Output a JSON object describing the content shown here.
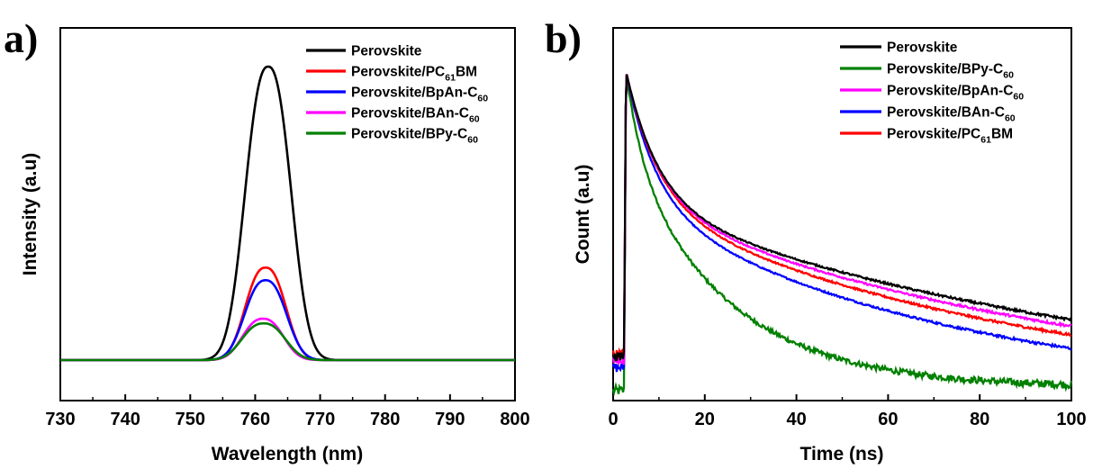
{
  "chart_data": [
    {
      "panel": "a)",
      "type": "line",
      "xlabel": "Wavelength (nm)",
      "ylabel": "Intensity (a.u)",
      "xlim": [
        730,
        800
      ],
      "xticks": [
        730,
        740,
        750,
        760,
        770,
        780,
        790,
        800
      ],
      "ylim": [
        -0.12,
        1.0
      ],
      "legend_position": "top-right",
      "series": [
        {
          "name": "Perovskite",
          "color": "#000000",
          "peak_x": 762.0,
          "peak_y": 1.0,
          "sigma": 3.4,
          "baseline": 0.0
        },
        {
          "name": "Perovskite/PC61BM",
          "color": "#ff0000",
          "peak_x": 761.6,
          "peak_y": 0.315,
          "sigma": 3.0,
          "baseline": 0.0
        },
        {
          "name": "Perovskite/BpAn-C60",
          "color": "#0000ff",
          "peak_x": 761.6,
          "peak_y": 0.272,
          "sigma": 3.1,
          "baseline": 0.0
        },
        {
          "name": "Perovskite/BAn-C60",
          "color": "#ff00ff",
          "peak_x": 761.2,
          "peak_y": 0.141,
          "sigma": 3.0,
          "baseline": 0.0
        },
        {
          "name": "Perovskite/BPy-C60",
          "color": "#008000",
          "peak_x": 761.3,
          "peak_y": 0.125,
          "sigma": 3.2,
          "baseline": 0.0
        }
      ]
    },
    {
      "panel": "b)",
      "type": "line",
      "xlabel": "Time (ns)",
      "ylabel": "Count (a.u)",
      "xlim": [
        0,
        100
      ],
      "xticks": [
        0,
        20,
        40,
        60,
        80,
        100
      ],
      "ylim": [
        0,
        1.05
      ],
      "legend_position": "top-right",
      "series": [
        {
          "name": "Perovskite",
          "color": "#000000",
          "rise_x": 2.8,
          "start_y": 1.0,
          "pre_level": 0.135,
          "a1": 0.4,
          "t1": 7,
          "a2": 0.6,
          "t2": 105,
          "floor": 0.01
        },
        {
          "name": "Perovskite/BPy-C60",
          "color": "#008000",
          "rise_x": 2.8,
          "start_y": 1.0,
          "pre_level": 0.03,
          "a1": 0.25,
          "t1": 3.5,
          "a2": 0.75,
          "t2": 22,
          "floor": 0.04
        },
        {
          "name": "Perovskite/BpAn-C60",
          "color": "#ff00ff",
          "rise_x": 2.8,
          "start_y": 1.0,
          "pre_level": 0.12,
          "a1": 0.4,
          "t1": 7,
          "a2": 0.6,
          "t2": 96,
          "floor": 0.01
        },
        {
          "name": "Perovskite/BAn-C60",
          "color": "#0000ff",
          "rise_x": 2.8,
          "start_y": 1.0,
          "pre_level": 0.1,
          "a1": 0.4,
          "t1": 6.5,
          "a2": 0.6,
          "t2": 70,
          "floor": 0.01
        },
        {
          "name": "Perovskite/PC61BM",
          "color": "#ff0000",
          "rise_x": 2.8,
          "start_y": 1.0,
          "pre_level": 0.14,
          "a1": 0.4,
          "t1": 7,
          "a2": 0.6,
          "t2": 85,
          "floor": 0.01
        }
      ]
    }
  ],
  "legend_a": [
    {
      "base": "Perovskite/",
      "main": "Perovskite",
      "sub": "",
      "tail": "",
      "color": "#000000"
    },
    {
      "main": "Perovskite/PC",
      "sub": "61",
      "tail": "BM",
      "color": "#ff0000"
    },
    {
      "main": "Perovskite/BpAn-C",
      "sub": "60",
      "tail": "",
      "color": "#0000ff"
    },
    {
      "main": "Perovskite/BAn-C",
      "sub": "60",
      "tail": "",
      "color": "#ff00ff"
    },
    {
      "main": "Perovskite/BPy-C",
      "sub": "60",
      "tail": "",
      "color": "#008000"
    }
  ],
  "legend_b": [
    {
      "main": "Perovskite",
      "sub": "",
      "tail": "",
      "color": "#000000"
    },
    {
      "main": "Perovskite/BPy-C",
      "sub": "60",
      "tail": "",
      "color": "#008000"
    },
    {
      "main": "Perovskite/BpAn-C",
      "sub": "60",
      "tail": "",
      "color": "#ff00ff"
    },
    {
      "main": "Perovskite/BAn-C",
      "sub": "60",
      "tail": "",
      "color": "#0000ff"
    },
    {
      "main": "Perovskite/PC",
      "sub": "61",
      "tail": "BM",
      "color": "#ff0000"
    }
  ]
}
